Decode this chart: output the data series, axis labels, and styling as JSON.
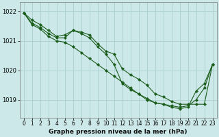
{
  "title": "Graphe pression niveau de la mer (hPa)",
  "bg_color": "#cce8e8",
  "grid_color": "#aacfcf",
  "line_color": "#1a5c1a",
  "marker": "D",
  "marker_size": 2.2,
  "xlim": [
    -0.5,
    23.5
  ],
  "ylim": [
    1018.4,
    1022.3
  ],
  "yticks": [
    1019,
    1020,
    1021,
    1022
  ],
  "xticks": [
    0,
    1,
    2,
    3,
    4,
    5,
    6,
    7,
    8,
    9,
    10,
    11,
    12,
    13,
    14,
    15,
    16,
    17,
    18,
    19,
    20,
    21,
    22,
    23
  ],
  "series1": [
    1021.95,
    1021.7,
    1021.55,
    1021.35,
    1021.15,
    1021.2,
    1021.35,
    1021.3,
    1021.2,
    1020.9,
    1020.65,
    1020.55,
    1020.05,
    1019.85,
    1019.7,
    1019.5,
    1019.2,
    1019.1,
    1018.95,
    1018.85,
    1018.85,
    1018.85,
    1018.85,
    1020.2
  ],
  "series2": [
    1021.95,
    1021.6,
    1021.45,
    1021.25,
    1021.1,
    1021.1,
    1021.35,
    1021.25,
    1021.1,
    1020.8,
    1020.55,
    1020.2,
    1019.55,
    1019.35,
    1019.2,
    1019.05,
    1018.9,
    1018.85,
    1018.75,
    1018.7,
    1018.75,
    1019.3,
    1019.55,
    1020.2
  ],
  "series3": [
    1021.95,
    1021.55,
    1021.4,
    1021.15,
    1021.0,
    1020.95,
    1020.8,
    1020.6,
    1020.4,
    1020.2,
    1020.0,
    1019.8,
    1019.6,
    1019.4,
    1019.2,
    1019.0,
    1018.9,
    1018.85,
    1018.8,
    1018.75,
    1018.8,
    1019.0,
    1019.4,
    1020.2
  ],
  "lw": 0.8,
  "xlabel_fontsize": 6.5,
  "xlabel_fontweight": "bold",
  "tick_fontsize": 5.5,
  "ytick_fontsize": 6.0
}
